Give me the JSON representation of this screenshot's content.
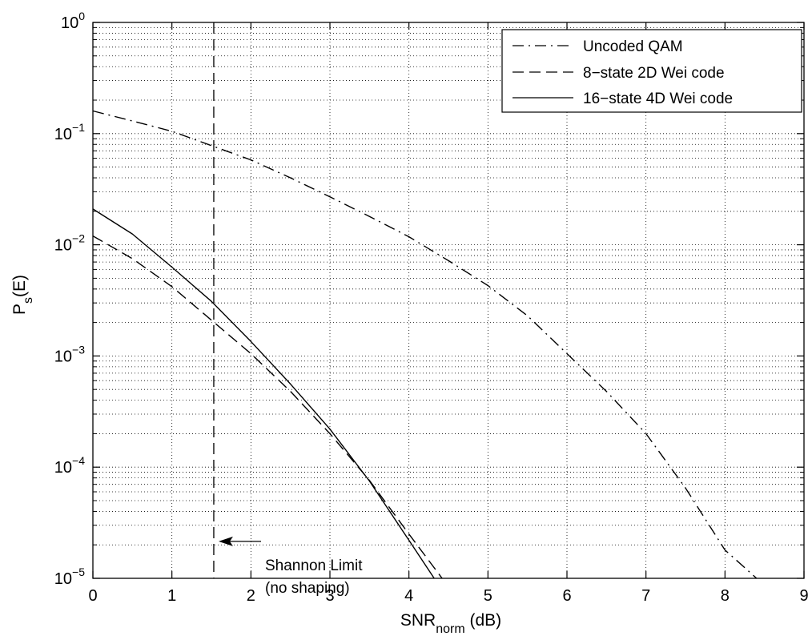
{
  "chart_data": {
    "type": "line",
    "title": "",
    "xlabel": {
      "main": "SNR",
      "sub": "norm",
      "suffix": " (dB)"
    },
    "ylabel": {
      "main": "P",
      "sub": "s",
      "suffix": "(E)"
    },
    "xlim": [
      0,
      9
    ],
    "ylim": [
      1e-05,
      1
    ],
    "yscale": "log",
    "grid": true,
    "legend_position": "top-right",
    "xticks": [
      0,
      1,
      2,
      3,
      4,
      5,
      6,
      7,
      8,
      9
    ],
    "xtick_labels": [
      "0",
      "1",
      "2",
      "3",
      "4",
      "5",
      "6",
      "7",
      "8",
      "9"
    ],
    "yticks": [
      1e-05,
      0.0001,
      0.001,
      0.01,
      0.1,
      1
    ],
    "ytick_labels": [
      {
        "base": "10",
        "exp": "−5"
      },
      {
        "base": "10",
        "exp": "−4"
      },
      {
        "base": "10",
        "exp": "−3"
      },
      {
        "base": "10",
        "exp": "−2"
      },
      {
        "base": "10",
        "exp": "−1"
      },
      {
        "base": "10",
        "exp": "0"
      }
    ],
    "series": [
      {
        "name": "Uncoded QAM",
        "style": "dashdot",
        "color": "#000000",
        "x": [
          0,
          0.5,
          1,
          1.5,
          2,
          2.5,
          3,
          3.5,
          4,
          4.5,
          5,
          5.5,
          6,
          6.5,
          7,
          7.5,
          8,
          8.4
        ],
        "y": [
          0.16,
          0.13,
          0.105,
          0.078,
          0.058,
          0.04,
          0.027,
          0.018,
          0.0118,
          0.0072,
          0.0043,
          0.0023,
          0.00105,
          0.00048,
          0.0002,
          6.5e-05,
          1.8e-05,
          1e-05
        ]
      },
      {
        "name": "8−state 2D Wei code",
        "style": "dashed",
        "color": "#000000",
        "x": [
          0,
          0.5,
          1,
          1.5,
          2,
          2.5,
          3,
          3.5,
          4,
          4.42
        ],
        "y": [
          0.012,
          0.0075,
          0.0042,
          0.0021,
          0.00105,
          0.00048,
          0.0002,
          7.6e-05,
          2.5e-05,
          1e-05
        ]
      },
      {
        "name": "16−state 4D Wei code",
        "style": "solid",
        "color": "#000000",
        "x": [
          0,
          0.5,
          1,
          1.5,
          2,
          2.5,
          3,
          3.5,
          4,
          4.32
        ],
        "y": [
          0.021,
          0.0125,
          0.0063,
          0.0031,
          0.00135,
          0.00056,
          0.00022,
          7.5e-05,
          2.2e-05,
          1e-05
        ]
      }
    ],
    "reference_line": {
      "x": 1.53,
      "style": "dashed"
    },
    "annotation": {
      "lines": [
        "Shannon Limit",
        "(no shaping)"
      ],
      "arrow_to": [
        1.53,
        2.15e-05
      ]
    }
  }
}
